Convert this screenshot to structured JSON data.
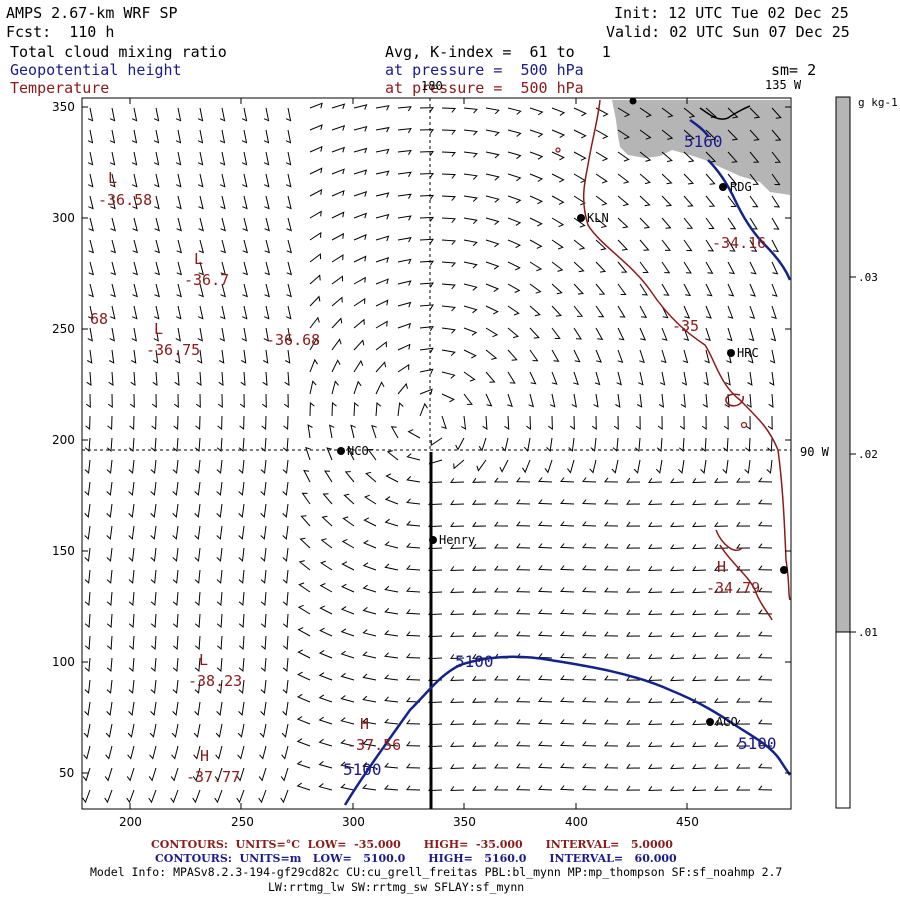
{
  "header": {
    "model": "AMPS 2.67-km WRF SP",
    "fcst": "Fcst:  110 h",
    "init": "Init: 12 UTC Tue 02 Dec 25",
    "valid": "Valid: 02 UTC Sun 07 Dec 25",
    "field1": "Total cloud mixing ratio",
    "field2": "Geopotential height",
    "field3": "Temperature",
    "avg": "Avg, K-index =  61 to   1",
    "pres2": "at pressure =  500 hPa",
    "pres3": "at pressure =  500 hPa",
    "sm": "sm= 2",
    "lon135": "135 W",
    "lon90": "90 W",
    "lon180": "180"
  },
  "colorbar": {
    "unit": "g kg-1",
    "ticks": [
      ".03",
      ".02",
      ".01"
    ]
  },
  "axes": {
    "x_ticks": [
      "200",
      "250",
      "300",
      "350",
      "400",
      "450"
    ],
    "y_ticks": [
      "350",
      "300",
      "250",
      "200",
      "150",
      "100",
      "50"
    ]
  },
  "stations": [
    {
      "name": "RDG"
    },
    {
      "name": "KLN"
    },
    {
      "name": "HRC"
    },
    {
      "name": "NCO"
    },
    {
      "name": "Henry"
    },
    {
      "name": "AGO"
    }
  ],
  "labels": {
    "temp": [
      "L",
      "-36.58",
      "L",
      "-36.7",
      "L",
      "-36.75",
      "-36.68",
      "68",
      "-35",
      "-34.16",
      "H",
      "-34.79",
      "L",
      "-38.23",
      "H",
      "-37.56",
      "H",
      "-37.77"
    ],
    "height": [
      "5160",
      "5100",
      "5100",
      "5100"
    ]
  },
  "footer": {
    "line1": "CONTOURS:  UNITS=°C  LOW=  -35.000      HIGH=  -35.000      INTERVAL=   5.0000",
    "line2": "CONTOURS:  UNITS=m   LOW=   5100.0      HIGH=   5160.0      INTERVAL=   60.000",
    "line3": "Model Info: MPASv8.2.3-194-gf29cd82c CU:cu_grell_freitas PBL:bl_mynn MP:mp_thompson SF:sf_noahmp 2.7",
    "line4": "LW:rrtmg_lw SW:rrtmg_sw SFLAY:sf_mynn"
  },
  "colors": {
    "height_contour": "#13238a",
    "temp_contour": "#8b1a1a",
    "cloud_fill": "#b5b5b5"
  }
}
